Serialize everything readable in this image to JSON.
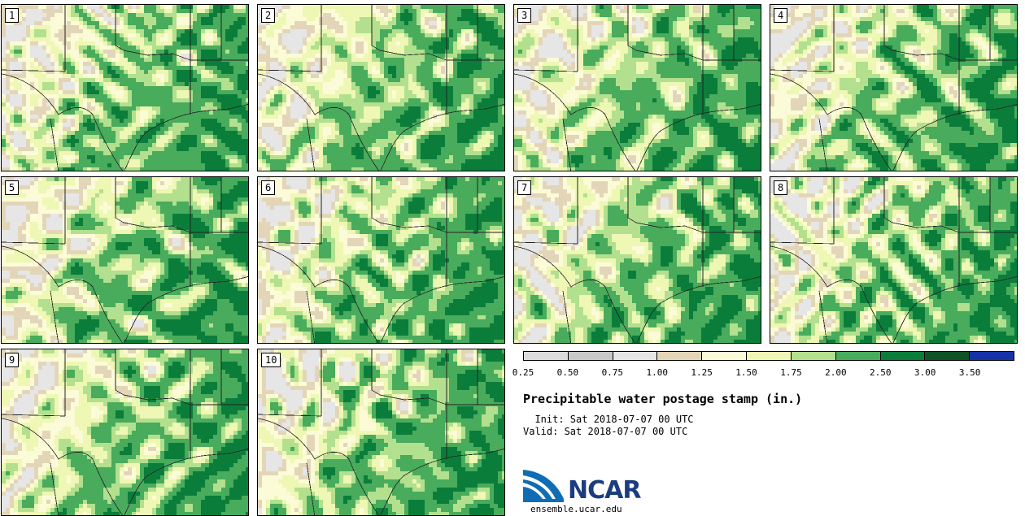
{
  "stamps": [
    {
      "label": "1"
    },
    {
      "label": "2"
    },
    {
      "label": "3"
    },
    {
      "label": "4"
    },
    {
      "label": "5"
    },
    {
      "label": "6"
    },
    {
      "label": "7"
    },
    {
      "label": "8"
    },
    {
      "label": "9"
    },
    {
      "label": "10"
    }
  ],
  "colorbar": {
    "ticks": [
      "0.25",
      "0.50",
      "0.75",
      "1.00",
      "1.25",
      "1.50",
      "1.75",
      "2.00",
      "2.50",
      "3.00",
      "3.50"
    ],
    "colors": [
      "#dcdcdc",
      "#c8c8c8",
      "#e6e6e6",
      "#e3d6b8",
      "#fbfbd8",
      "#eef7b4",
      "#b2e08e",
      "#49ab5c",
      "#0b7d3a",
      "#0e5326",
      "#1532a8"
    ]
  },
  "title": "Precipitable water postage stamp (in.)",
  "init": "  Init: Sat 2018-07-07 00 UTC",
  "valid": "Valid: Sat 2018-07-07 00 UTC",
  "logo_text": "NCAR",
  "site": "ensemble.ucar.edu"
}
